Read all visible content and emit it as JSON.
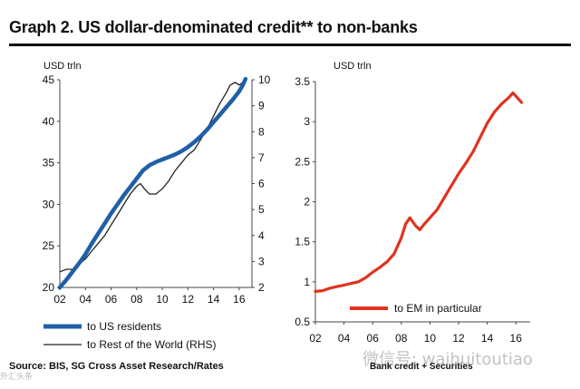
{
  "title": "Graph 2. US dollar-denominated credit** to non-banks",
  "source": "Source: BIS, SG Cross Asset Research/Rates",
  "footnote_right": "Bank credit + Securities",
  "watermark": "微信号: waihuitoutiao",
  "watermark_tag": "外汇头条",
  "colors": {
    "blue": "#1f5fa8",
    "black": "#222222",
    "red": "#e0321e",
    "axis": "#444444"
  },
  "chart_data": [
    {
      "type": "line",
      "ylabel": "USD trln",
      "x_ticks": [
        "02",
        "04",
        "06",
        "08",
        "10",
        "12",
        "14",
        "16"
      ],
      "xlim": [
        2002,
        2017
      ],
      "ylim_left": [
        20,
        45
      ],
      "y_ticks_left": [
        "20",
        "25",
        "30",
        "35",
        "40",
        "45"
      ],
      "ylim_right": [
        2,
        10
      ],
      "y_ticks_right": [
        "2",
        "3",
        "4",
        "5",
        "6",
        "7",
        "8",
        "9",
        "10"
      ],
      "series": [
        {
          "name": "to US residents",
          "axis": "left",
          "points": [
            [
              2002.0,
              20.0
            ],
            [
              2002.5,
              20.9
            ],
            [
              2003.0,
              21.9
            ],
            [
              2003.5,
              22.9
            ],
            [
              2004.0,
              24.0
            ],
            [
              2004.5,
              25.3
            ],
            [
              2005.0,
              26.5
            ],
            [
              2005.5,
              27.7
            ],
            [
              2006.0,
              28.9
            ],
            [
              2006.5,
              30.0
            ],
            [
              2007.0,
              31.1
            ],
            [
              2007.5,
              32.1
            ],
            [
              2008.0,
              33.1
            ],
            [
              2008.5,
              34.1
            ],
            [
              2009.0,
              34.7
            ],
            [
              2009.5,
              35.1
            ],
            [
              2010.0,
              35.4
            ],
            [
              2010.5,
              35.7
            ],
            [
              2011.0,
              36.0
            ],
            [
              2011.5,
              36.4
            ],
            [
              2012.0,
              36.9
            ],
            [
              2012.5,
              37.5
            ],
            [
              2013.0,
              38.2
            ],
            [
              2013.5,
              39.0
            ],
            [
              2014.0,
              39.9
            ],
            [
              2014.5,
              40.8
            ],
            [
              2015.0,
              41.7
            ],
            [
              2015.5,
              42.6
            ],
            [
              2016.0,
              43.6
            ],
            [
              2016.3,
              44.4
            ],
            [
              2016.5,
              45.1
            ]
          ]
        },
        {
          "name": "to Rest of the World (RHS)",
          "axis": "right",
          "points": [
            [
              2002.0,
              2.6
            ],
            [
              2002.5,
              2.7
            ],
            [
              2003.0,
              2.7
            ],
            [
              2003.5,
              2.9
            ],
            [
              2004.0,
              3.1
            ],
            [
              2004.5,
              3.4
            ],
            [
              2005.0,
              3.7
            ],
            [
              2005.5,
              4.0
            ],
            [
              2006.0,
              4.4
            ],
            [
              2006.5,
              4.8
            ],
            [
              2007.0,
              5.2
            ],
            [
              2007.5,
              5.6
            ],
            [
              2008.0,
              5.9
            ],
            [
              2008.3,
              6.0
            ],
            [
              2008.6,
              5.8
            ],
            [
              2009.0,
              5.6
            ],
            [
              2009.5,
              5.6
            ],
            [
              2010.0,
              5.8
            ],
            [
              2010.5,
              6.1
            ],
            [
              2011.0,
              6.5
            ],
            [
              2011.5,
              6.8
            ],
            [
              2012.0,
              7.1
            ],
            [
              2012.5,
              7.3
            ],
            [
              2013.0,
              7.7
            ],
            [
              2013.5,
              8.1
            ],
            [
              2014.0,
              8.6
            ],
            [
              2014.5,
              9.1
            ],
            [
              2015.0,
              9.5
            ],
            [
              2015.3,
              9.8
            ],
            [
              2015.7,
              9.9
            ],
            [
              2016.0,
              9.8
            ],
            [
              2016.3,
              9.9
            ]
          ]
        }
      ]
    },
    {
      "type": "line",
      "ylabel": "USD trln",
      "x_ticks": [
        "02",
        "04",
        "06",
        "08",
        "10",
        "12",
        "14",
        "16"
      ],
      "xlim": [
        2002,
        2017
      ],
      "ylim": [
        0.5,
        3.5
      ],
      "y_ticks": [
        "0.5",
        "1",
        "1.5",
        "2",
        "2.5",
        "3",
        "3.5"
      ],
      "series": [
        {
          "name": "to EM in particular",
          "points": [
            [
              2002.0,
              0.88
            ],
            [
              2002.5,
              0.89
            ],
            [
              2003.0,
              0.92
            ],
            [
              2003.5,
              0.94
            ],
            [
              2004.0,
              0.96
            ],
            [
              2004.5,
              0.98
            ],
            [
              2005.0,
              1.0
            ],
            [
              2005.5,
              1.05
            ],
            [
              2006.0,
              1.12
            ],
            [
              2006.5,
              1.18
            ],
            [
              2007.0,
              1.25
            ],
            [
              2007.5,
              1.35
            ],
            [
              2008.0,
              1.55
            ],
            [
              2008.3,
              1.72
            ],
            [
              2008.6,
              1.8
            ],
            [
              2009.0,
              1.7
            ],
            [
              2009.3,
              1.65
            ],
            [
              2009.6,
              1.72
            ],
            [
              2010.0,
              1.8
            ],
            [
              2010.5,
              1.9
            ],
            [
              2011.0,
              2.05
            ],
            [
              2011.5,
              2.2
            ],
            [
              2012.0,
              2.35
            ],
            [
              2012.5,
              2.48
            ],
            [
              2013.0,
              2.62
            ],
            [
              2013.5,
              2.8
            ],
            [
              2014.0,
              2.98
            ],
            [
              2014.5,
              3.12
            ],
            [
              2015.0,
              3.22
            ],
            [
              2015.5,
              3.3
            ],
            [
              2015.8,
              3.36
            ],
            [
              2016.1,
              3.3
            ],
            [
              2016.4,
              3.24
            ]
          ]
        }
      ]
    }
  ]
}
